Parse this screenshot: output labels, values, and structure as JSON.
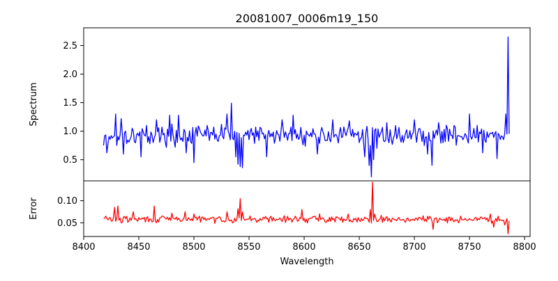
{
  "chart_data": {
    "type": "line",
    "title": "20081007_0006m19_150",
    "xlabel": "Wavelength",
    "xlim": [
      8400,
      8805
    ],
    "x_ticks": [
      "8400",
      "8450",
      "8500",
      "8550",
      "8600",
      "8650",
      "8700",
      "8750",
      "8800"
    ],
    "x_tick_values": [
      8400,
      8450,
      8500,
      8550,
      8600,
      8650,
      8700,
      8750,
      8800
    ],
    "panels": [
      {
        "name": "spectrum",
        "ylabel": "Spectrum",
        "ylim": [
          0.13,
          2.81
        ],
        "y_ticks": [
          "0.5",
          "1.0",
          "1.5",
          "2.0",
          "2.5"
        ],
        "y_tick_values": [
          0.5,
          1.0,
          1.5,
          2.0,
          2.5
        ],
        "series": [
          {
            "name": "Spectrum",
            "color": "#0000ff",
            "x_start": 8418,
            "x_end": 8786,
            "x_step": 1,
            "baseline": 0.93,
            "noise": 0.13,
            "seed": 17,
            "features": [
              [
                8418,
                0.75
              ],
              [
                8419,
                0.92
              ],
              [
                8421,
                0.62
              ],
              [
                8422,
                0.78
              ],
              [
                8429,
                1.3
              ],
              [
                8430,
                0.75
              ],
              [
                8434,
                1.22
              ],
              [
                8436,
                0.6
              ],
              [
                8438,
                1.0
              ],
              [
                8452,
                0.55
              ],
              [
                8457,
                1.1
              ],
              [
                8463,
                0.8
              ],
              [
                8466,
                1.2
              ],
              [
                8478,
                1.28
              ],
              [
                8483,
                0.72
              ],
              [
                8486,
                1.28
              ],
              [
                8493,
                0.62
              ],
              [
                8500,
                0.45
              ],
              [
                8512,
                1.1
              ],
              [
                8525,
                1.12
              ],
              [
                8530,
                1.3
              ],
              [
                8534,
                1.49
              ],
              [
                8536,
                0.85
              ],
              [
                8538,
                0.55
              ],
              [
                8540,
                0.42
              ],
              [
                8542,
                0.38
              ],
              [
                8544,
                0.36
              ],
              [
                8552,
                1.05
              ],
              [
                8566,
                0.55
              ],
              [
                8580,
                1.2
              ],
              [
                8590,
                1.28
              ],
              [
                8603,
                0.95
              ],
              [
                8612,
                0.6
              ],
              [
                8626,
                1.2
              ],
              [
                8641,
                1.18
              ],
              [
                8652,
                0.88
              ],
              [
                8655,
                0.55
              ],
              [
                8659,
                0.4
              ],
              [
                8661,
                0.2
              ],
              [
                8663,
                0.5
              ],
              [
                8666,
                0.7
              ],
              [
                8675,
                1.15
              ],
              [
                8700,
                1.2
              ],
              [
                8712,
                0.6
              ],
              [
                8716,
                0.4
              ],
              [
                8722,
                1.15
              ],
              [
                8736,
                1.1
              ],
              [
                8750,
                1.3
              ],
              [
                8762,
                0.62
              ],
              [
                8775,
                0.52
              ],
              [
                8780,
                0.9
              ],
              [
                8783,
                1.3
              ],
              [
                8784,
                0.95
              ],
              [
                8785,
                2.65
              ]
            ]
          }
        ]
      },
      {
        "name": "error",
        "ylabel": "Error",
        "ylim": [
          0.019,
          0.145
        ],
        "y_ticks": [
          "0.05",
          "0.10"
        ],
        "y_tick_values": [
          0.05,
          0.1
        ],
        "series": [
          {
            "name": "Error",
            "color": "#ff0000",
            "x_start": 8418,
            "x_end": 8786,
            "x_step": 1,
            "baseline": 0.058,
            "noise": 0.006,
            "seed": 29,
            "features": [
              [
                8418,
                0.06
              ],
              [
                8420,
                0.065
              ],
              [
                8428,
                0.085
              ],
              [
                8431,
                0.088
              ],
              [
                8434,
                0.05
              ],
              [
                8445,
                0.075
              ],
              [
                8464,
                0.088
              ],
              [
                8466,
                0.05
              ],
              [
                8480,
                0.072
              ],
              [
                8492,
                0.075
              ],
              [
                8500,
                0.07
              ],
              [
                8505,
                0.065
              ],
              [
                8520,
                0.06
              ],
              [
                8530,
                0.075
              ],
              [
                8540,
                0.082
              ],
              [
                8542,
                0.105
              ],
              [
                8544,
                0.075
              ],
              [
                8560,
                0.06
              ],
              [
                8598,
                0.08
              ],
              [
                8600,
                0.06
              ],
              [
                8614,
                0.07
              ],
              [
                8640,
                0.07
              ],
              [
                8652,
                0.06
              ],
              [
                8660,
                0.08
              ],
              [
                8662,
                0.142
              ],
              [
                8664,
                0.07
              ],
              [
                8690,
                0.058
              ],
              [
                8700,
                0.055
              ],
              [
                8717,
                0.035
              ],
              [
                8721,
                0.05
              ],
              [
                8740,
                0.05
              ],
              [
                8769,
                0.07
              ],
              [
                8772,
                0.04
              ],
              [
                8780,
                0.055
              ],
              [
                8782,
                0.045
              ],
              [
                8785,
                0.025
              ]
            ]
          }
        ]
      }
    ]
  }
}
